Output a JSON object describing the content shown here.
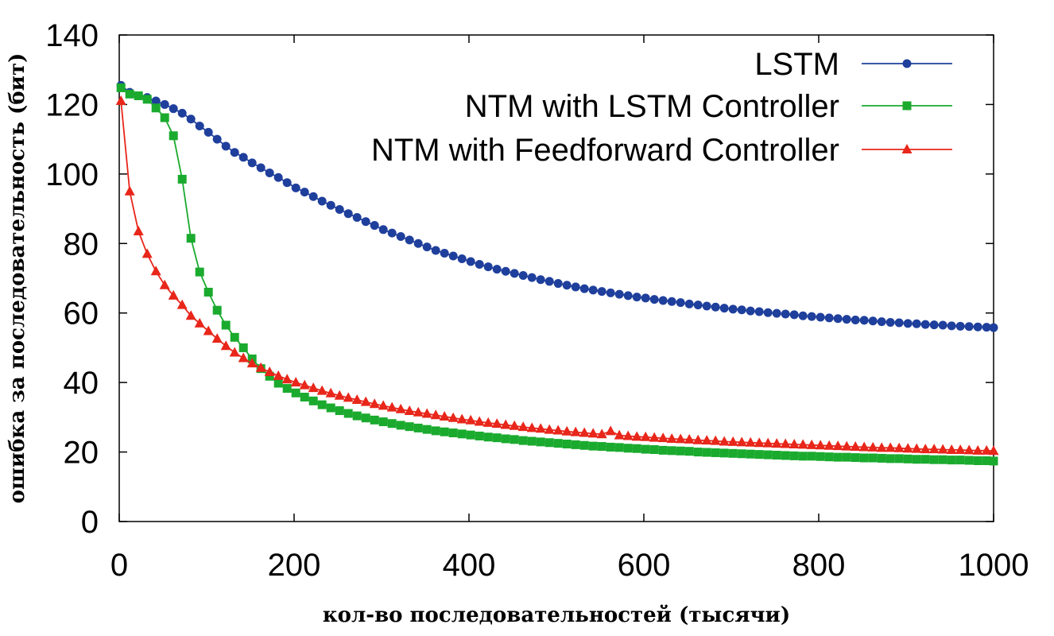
{
  "chart_data": {
    "type": "line",
    "title": "",
    "xlabel": "кол-во последовательностей (тысячи)",
    "ylabel": "ошибка за последовательность (бит)",
    "xlim": [
      0,
      1000
    ],
    "ylim": [
      0,
      140
    ],
    "x_ticks": [
      "0",
      "200",
      "400",
      "600",
      "800",
      "1000"
    ],
    "y_ticks": [
      "0",
      "20",
      "40",
      "60",
      "80",
      "100",
      "120",
      "140"
    ],
    "grid": false,
    "legend_position": "top-right",
    "series": [
      {
        "name": "LSTM",
        "color": "#1f3f9c",
        "marker": "circle",
        "points": [
          [
            2,
            125.5
          ],
          [
            12,
            123.5
          ],
          [
            22,
            122.5
          ],
          [
            32,
            122
          ],
          [
            42,
            121
          ],
          [
            52,
            120
          ],
          [
            62,
            118.8
          ],
          [
            72,
            117.5
          ],
          [
            82,
            115.8
          ],
          [
            92,
            113.8
          ],
          [
            102,
            112
          ],
          [
            112,
            110
          ],
          [
            122,
            108
          ],
          [
            132,
            106.2
          ],
          [
            142,
            104.8
          ],
          [
            152,
            103.2
          ],
          [
            162,
            101.8
          ],
          [
            172,
            100.3
          ],
          [
            182,
            99
          ],
          [
            192,
            97.5
          ],
          [
            202,
            96
          ],
          [
            212,
            94.8
          ],
          [
            222,
            93.5
          ],
          [
            232,
            92.2
          ],
          [
            242,
            91
          ],
          [
            252,
            89.8
          ],
          [
            262,
            88.6
          ],
          [
            272,
            87.5
          ],
          [
            282,
            86.3
          ],
          [
            292,
            85.2
          ],
          [
            302,
            84
          ],
          [
            312,
            83
          ],
          [
            322,
            82
          ],
          [
            332,
            81
          ],
          [
            342,
            80
          ],
          [
            352,
            79
          ],
          [
            362,
            78
          ],
          [
            372,
            77.2
          ],
          [
            382,
            76.4
          ],
          [
            392,
            75.6
          ],
          [
            402,
            74.8
          ],
          [
            412,
            74
          ],
          [
            422,
            73.3
          ],
          [
            432,
            72.6
          ],
          [
            442,
            72
          ],
          [
            452,
            71.4
          ],
          [
            462,
            70.8
          ],
          [
            472,
            70.2
          ],
          [
            482,
            69.6
          ],
          [
            492,
            69.1
          ],
          [
            502,
            68.5
          ],
          [
            512,
            68
          ],
          [
            522,
            67.5
          ],
          [
            532,
            67
          ],
          [
            542,
            66.6
          ],
          [
            552,
            66.2
          ],
          [
            562,
            65.8
          ],
          [
            572,
            65.4
          ],
          [
            582,
            65
          ],
          [
            592,
            64.6
          ],
          [
            602,
            64.3
          ],
          [
            612,
            63.9
          ],
          [
            622,
            63.6
          ],
          [
            632,
            63.3
          ],
          [
            642,
            63
          ],
          [
            652,
            62.6
          ],
          [
            662,
            62.3
          ],
          [
            672,
            62
          ],
          [
            682,
            61.7
          ],
          [
            692,
            61.4
          ],
          [
            702,
            61.1
          ],
          [
            712,
            60.9
          ],
          [
            722,
            60.6
          ],
          [
            732,
            60.4
          ],
          [
            742,
            60.1
          ],
          [
            752,
            59.9
          ],
          [
            762,
            59.7
          ],
          [
            772,
            59.5
          ],
          [
            782,
            59.2
          ],
          [
            792,
            59
          ],
          [
            802,
            58.8
          ],
          [
            812,
            58.6
          ],
          [
            822,
            58.4
          ],
          [
            832,
            58.2
          ],
          [
            842,
            58
          ],
          [
            852,
            57.9
          ],
          [
            862,
            57.7
          ],
          [
            872,
            57.5
          ],
          [
            882,
            57.3
          ],
          [
            892,
            57.2
          ],
          [
            902,
            57
          ],
          [
            912,
            56.9
          ],
          [
            922,
            56.7
          ],
          [
            932,
            56.6
          ],
          [
            942,
            56.5
          ],
          [
            952,
            56.3
          ],
          [
            962,
            56.2
          ],
          [
            972,
            56.1
          ],
          [
            982,
            56
          ],
          [
            992,
            55.9
          ],
          [
            1000,
            55.8
          ]
        ]
      },
      {
        "name": "NTM with LSTM Controller",
        "color": "#1aaa2e",
        "marker": "square",
        "points": [
          [
            2,
            124.8
          ],
          [
            12,
            123
          ],
          [
            22,
            122.5
          ],
          [
            32,
            121.5
          ],
          [
            42,
            119
          ],
          [
            52,
            116.2
          ],
          [
            62,
            111
          ],
          [
            72,
            98.5
          ],
          [
            82,
            81.5
          ],
          [
            92,
            71.8
          ],
          [
            102,
            66
          ],
          [
            112,
            60.8
          ],
          [
            122,
            56.5
          ],
          [
            132,
            53
          ],
          [
            142,
            50
          ],
          [
            152,
            46.8
          ],
          [
            162,
            44
          ],
          [
            172,
            41.8
          ],
          [
            182,
            39.8
          ],
          [
            192,
            38.3
          ],
          [
            202,
            37
          ],
          [
            212,
            35.8
          ],
          [
            222,
            34.7
          ],
          [
            232,
            33.6
          ],
          [
            242,
            32.7
          ],
          [
            252,
            31.9
          ],
          [
            262,
            31.1
          ],
          [
            272,
            30.4
          ],
          [
            282,
            29.8
          ],
          [
            292,
            29.2
          ],
          [
            302,
            28.7
          ],
          [
            312,
            28.2
          ],
          [
            322,
            27.7
          ],
          [
            332,
            27.3
          ],
          [
            342,
            26.9
          ],
          [
            352,
            26.5
          ],
          [
            362,
            26.1
          ],
          [
            372,
            25.8
          ],
          [
            382,
            25.5
          ],
          [
            392,
            25.2
          ],
          [
            402,
            24.9
          ],
          [
            412,
            24.6
          ],
          [
            422,
            24.3
          ],
          [
            432,
            24.1
          ],
          [
            442,
            23.8
          ],
          [
            452,
            23.6
          ],
          [
            462,
            23.3
          ],
          [
            472,
            23.1
          ],
          [
            482,
            22.9
          ],
          [
            492,
            22.7
          ],
          [
            502,
            22.5
          ],
          [
            512,
            22.3
          ],
          [
            522,
            22.1
          ],
          [
            532,
            21.9
          ],
          [
            542,
            21.7
          ],
          [
            552,
            21.6
          ],
          [
            562,
            21.4
          ],
          [
            572,
            21.3
          ],
          [
            582,
            21.1
          ],
          [
            592,
            21
          ],
          [
            602,
            20.8
          ],
          [
            612,
            20.7
          ],
          [
            622,
            20.5
          ],
          [
            632,
            20.4
          ],
          [
            642,
            20.3
          ],
          [
            652,
            20.2
          ],
          [
            662,
            20
          ],
          [
            672,
            19.9
          ],
          [
            682,
            19.8
          ],
          [
            692,
            19.7
          ],
          [
            702,
            19.6
          ],
          [
            712,
            19.5
          ],
          [
            722,
            19.4
          ],
          [
            732,
            19.3
          ],
          [
            742,
            19.2
          ],
          [
            752,
            19.1
          ],
          [
            762,
            19
          ],
          [
            772,
            18.9
          ],
          [
            782,
            18.8
          ],
          [
            792,
            18.8
          ],
          [
            802,
            18.7
          ],
          [
            812,
            18.6
          ],
          [
            822,
            18.5
          ],
          [
            832,
            18.5
          ],
          [
            842,
            18.4
          ],
          [
            852,
            18.3
          ],
          [
            862,
            18.3
          ],
          [
            872,
            18.2
          ],
          [
            882,
            18.1
          ],
          [
            892,
            18.1
          ],
          [
            902,
            18
          ],
          [
            912,
            17.9
          ],
          [
            922,
            17.9
          ],
          [
            932,
            17.8
          ],
          [
            942,
            17.8
          ],
          [
            952,
            17.7
          ],
          [
            962,
            17.7
          ],
          [
            972,
            17.6
          ],
          [
            982,
            17.5
          ],
          [
            992,
            17.5
          ],
          [
            1000,
            17.4
          ]
        ]
      },
      {
        "name": "NTM with Feedforward Controller",
        "color": "#e8261a",
        "marker": "triangle",
        "points": [
          [
            2,
            121
          ],
          [
            12,
            95
          ],
          [
            22,
            83.5
          ],
          [
            32,
            77
          ],
          [
            42,
            72
          ],
          [
            52,
            68
          ],
          [
            62,
            65
          ],
          [
            72,
            62.3
          ],
          [
            82,
            59.2
          ],
          [
            92,
            57
          ],
          [
            102,
            54.8
          ],
          [
            112,
            52.6
          ],
          [
            122,
            50.5
          ],
          [
            132,
            48.6
          ],
          [
            142,
            47
          ],
          [
            152,
            45.5
          ],
          [
            162,
            44.2
          ],
          [
            172,
            43
          ],
          [
            182,
            41.9
          ],
          [
            192,
            40.9
          ],
          [
            202,
            40
          ],
          [
            212,
            39.2
          ],
          [
            222,
            38.4
          ],
          [
            232,
            37.6
          ],
          [
            242,
            36.9
          ],
          [
            252,
            36.2
          ],
          [
            262,
            35.6
          ],
          [
            272,
            35
          ],
          [
            282,
            34.4
          ],
          [
            292,
            33.8
          ],
          [
            302,
            33.3
          ],
          [
            312,
            32.8
          ],
          [
            322,
            32.3
          ],
          [
            332,
            31.8
          ],
          [
            342,
            31.4
          ],
          [
            352,
            31
          ],
          [
            362,
            30.6
          ],
          [
            372,
            30.2
          ],
          [
            382,
            29.8
          ],
          [
            392,
            29.4
          ],
          [
            402,
            29.1
          ],
          [
            412,
            28.7
          ],
          [
            422,
            28.4
          ],
          [
            432,
            28.1
          ],
          [
            442,
            27.8
          ],
          [
            452,
            27.5
          ],
          [
            462,
            27.2
          ],
          [
            472,
            26.9
          ],
          [
            482,
            26.7
          ],
          [
            492,
            26.4
          ],
          [
            502,
            26.2
          ],
          [
            512,
            25.9
          ],
          [
            522,
            25.7
          ],
          [
            532,
            25.5
          ],
          [
            542,
            25.3
          ],
          [
            552,
            25.1
          ],
          [
            562,
            26
          ],
          [
            572,
            24.8
          ],
          [
            582,
            24.6
          ],
          [
            592,
            24.4
          ],
          [
            602,
            24.3
          ],
          [
            612,
            24.1
          ],
          [
            622,
            24
          ],
          [
            632,
            23.8
          ],
          [
            642,
            23.7
          ],
          [
            652,
            23.6
          ],
          [
            662,
            23.4
          ],
          [
            672,
            23.3
          ],
          [
            682,
            23.2
          ],
          [
            692,
            23
          ],
          [
            702,
            22.9
          ],
          [
            712,
            22.8
          ],
          [
            722,
            22.7
          ],
          [
            732,
            22.6
          ],
          [
            742,
            22.5
          ],
          [
            752,
            22.4
          ],
          [
            762,
            22.3
          ],
          [
            772,
            22.2
          ],
          [
            782,
            22.1
          ],
          [
            792,
            22
          ],
          [
            802,
            21.9
          ],
          [
            812,
            21.8
          ],
          [
            822,
            21.7
          ],
          [
            832,
            21.6
          ],
          [
            842,
            21.5
          ],
          [
            852,
            21.4
          ],
          [
            862,
            21.3
          ],
          [
            872,
            21.2
          ],
          [
            882,
            21.2
          ],
          [
            892,
            21.1
          ],
          [
            902,
            21
          ],
          [
            912,
            20.9
          ],
          [
            922,
            20.8
          ],
          [
            932,
            20.8
          ],
          [
            942,
            20.7
          ],
          [
            952,
            20.6
          ],
          [
            962,
            20.6
          ],
          [
            972,
            20.5
          ],
          [
            982,
            20.4
          ],
          [
            992,
            20.4
          ],
          [
            1000,
            20.3
          ]
        ]
      }
    ]
  }
}
